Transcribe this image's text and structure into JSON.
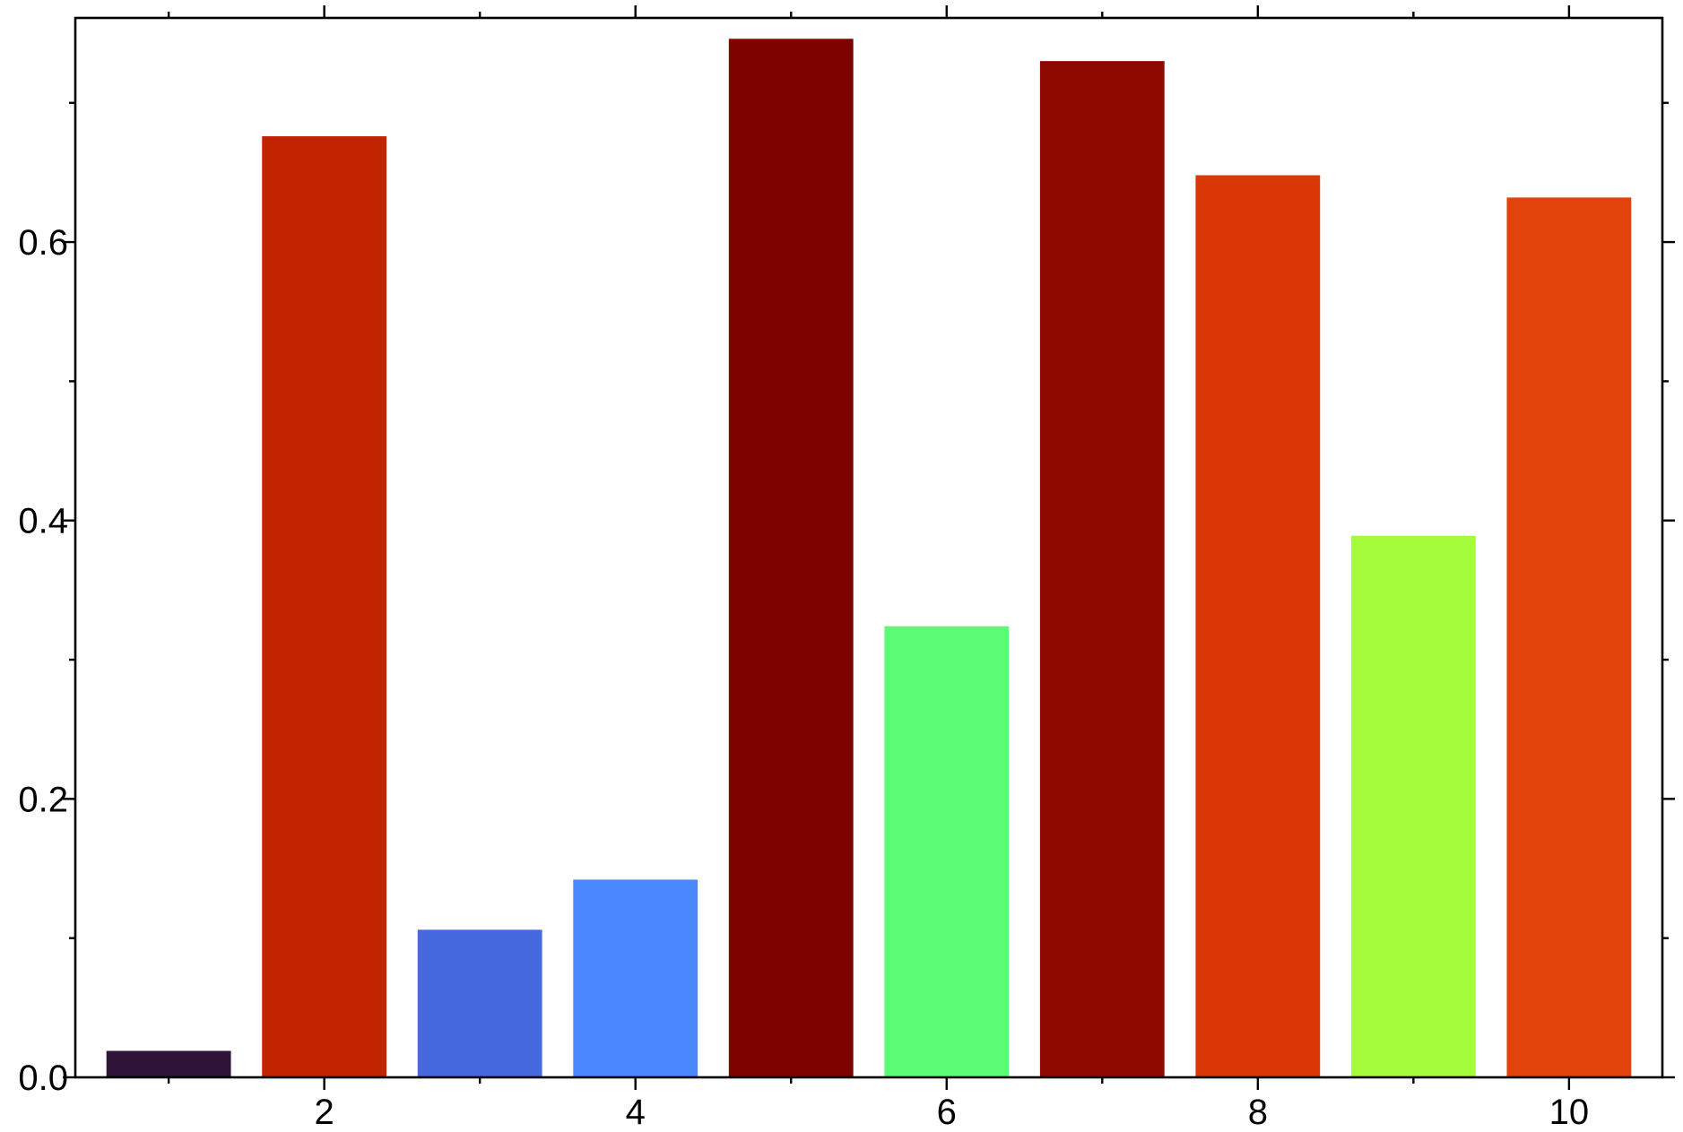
{
  "chart_data": {
    "type": "bar",
    "x": [
      1,
      2,
      3,
      4,
      5,
      6,
      7,
      8,
      9,
      10
    ],
    "values": [
      0.019,
      0.676,
      0.106,
      0.142,
      0.746,
      0.324,
      0.73,
      0.648,
      0.389,
      0.632
    ],
    "colors": [
      "#2e1437",
      "#c22400",
      "#4769e0",
      "#4a88ff",
      "#7e0300",
      "#5bfb73",
      "#8e0a00",
      "#d93806",
      "#a5fc3c",
      "#e2440b"
    ],
    "bar_width": 0.8,
    "xlim": [
      0.4,
      10.6
    ],
    "xticks": [
      2,
      4,
      6,
      8,
      10
    ],
    "ylim": [
      0,
      0.761
    ],
    "yticks": [
      {
        "value": 0,
        "label": "0.0"
      },
      {
        "value": 0.2,
        "label": "0.2"
      },
      {
        "value": 0.4,
        "label": "0.4"
      },
      {
        "value": 0.6,
        "label": "0.6"
      }
    ],
    "grid": false
  }
}
